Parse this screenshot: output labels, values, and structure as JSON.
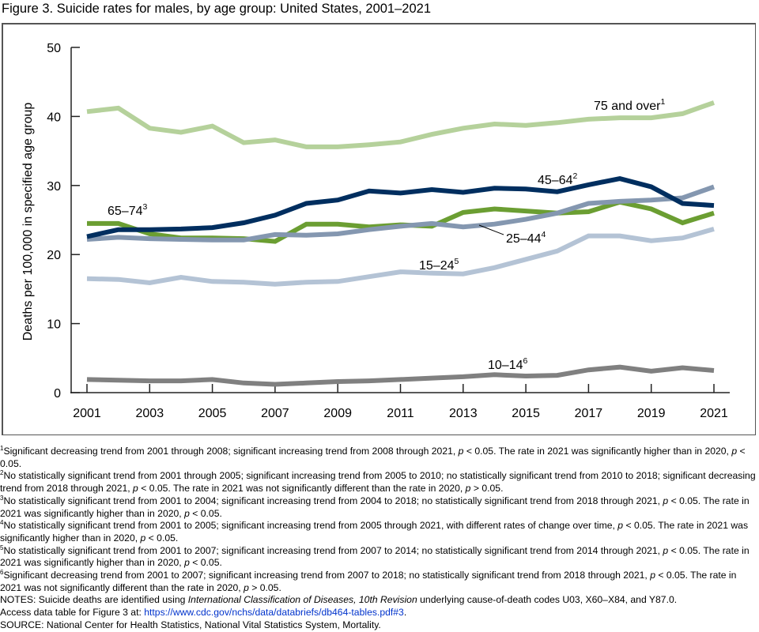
{
  "title": "Figure 3. Suicide rates for males, by age group: United States, 2001–2021",
  "chart_data": {
    "type": "line",
    "title": "Figure 3. Suicide rates for males, by age group: United States, 2001–2021",
    "xlabel": "",
    "ylabel": "Deaths per 100,000 in specified age group",
    "ylim": [
      0,
      50
    ],
    "xlim": [
      2001,
      2021
    ],
    "yticks": [
      0,
      10,
      20,
      30,
      40,
      50
    ],
    "xticks": [
      2001,
      2003,
      2005,
      2007,
      2009,
      2011,
      2013,
      2015,
      2017,
      2019,
      2021
    ],
    "grid": false,
    "legend": "inline labels",
    "x": [
      2001,
      2002,
      2003,
      2004,
      2005,
      2006,
      2007,
      2008,
      2009,
      2010,
      2011,
      2012,
      2013,
      2014,
      2015,
      2016,
      2017,
      2018,
      2019,
      2020,
      2021
    ],
    "series": [
      {
        "name": "75 and over",
        "label": "75 and over",
        "footnote": "1",
        "color": "#b5d19b",
        "values": [
          40.7,
          41.2,
          38.3,
          37.7,
          38.6,
          36.2,
          36.6,
          35.6,
          35.6,
          35.9,
          36.3,
          37.4,
          38.3,
          38.9,
          38.7,
          39.1,
          39.6,
          39.8,
          39.8,
          40.4,
          42.0
        ]
      },
      {
        "name": "45–64",
        "label": "45–64",
        "footnote": "2",
        "color": "#002e5f",
        "values": [
          22.6,
          23.6,
          23.6,
          23.7,
          23.9,
          24.6,
          25.7,
          27.4,
          27.9,
          29.2,
          28.9,
          29.4,
          29.0,
          29.6,
          29.5,
          29.1,
          30.1,
          31.0,
          29.8,
          27.4,
          27.1
        ]
      },
      {
        "name": "65–74",
        "label": "65–74",
        "footnote": "3",
        "color": "#6b9e32",
        "values": [
          24.5,
          24.5,
          23.0,
          22.4,
          22.4,
          22.3,
          21.9,
          24.4,
          24.4,
          24.0,
          24.3,
          24.1,
          26.1,
          26.6,
          26.3,
          26.0,
          26.2,
          27.6,
          26.6,
          24.6,
          26.0
        ]
      },
      {
        "name": "25–44",
        "label": "25–44",
        "footnote": "4",
        "color": "#8497b0",
        "values": [
          22.2,
          22.5,
          22.3,
          22.2,
          22.1,
          22.1,
          22.9,
          22.8,
          23.0,
          23.6,
          24.1,
          24.5,
          24.0,
          24.4,
          25.1,
          26.0,
          27.4,
          27.7,
          27.9,
          28.2,
          29.8
        ]
      },
      {
        "name": "15–24",
        "label": "15–24",
        "footnote": "5",
        "color": "#b4c3d5",
        "values": [
          16.5,
          16.4,
          15.9,
          16.7,
          16.1,
          16.0,
          15.7,
          16.0,
          16.1,
          16.8,
          17.5,
          17.3,
          17.2,
          18.1,
          19.3,
          20.5,
          22.7,
          22.7,
          22.0,
          22.4,
          23.7
        ]
      },
      {
        "name": "10–14",
        "label": "10–14",
        "footnote": "6",
        "color": "#808080",
        "values": [
          1.9,
          1.8,
          1.7,
          1.7,
          1.9,
          1.4,
          1.2,
          1.4,
          1.6,
          1.7,
          1.9,
          2.1,
          2.3,
          2.6,
          2.4,
          2.5,
          3.3,
          3.7,
          3.1,
          3.6,
          3.2
        ]
      }
    ]
  },
  "footnotes": [
    {
      "num": "1",
      "parts": [
        "Significant decreasing trend from 2001 through 2008; significant increasing trend from 2008 through 2021, ",
        "p",
        " < 0.05. The rate in 2021 was significantly higher than in 2020, ",
        "p",
        " < 0.05."
      ]
    },
    {
      "num": "2",
      "parts": [
        "No statistically significant trend from 2001 through 2005; significant increasing trend from 2005 to 2010; no statistically significant trend from 2010 to 2018; significant decreasing trend from 2018 through 2021, ",
        "p",
        " < 0.05. The rate in 2021 was not significantly different than the rate in 2020, ",
        "p",
        " > 0.05."
      ]
    },
    {
      "num": "3",
      "parts": [
        "No statistically significant trend from 2001 to 2004; significant increasing trend from 2004 to 2018; no statistically significant trend from 2018 through 2021, ",
        "p",
        " < 0.05. The rate in 2021 was significantly higher than in 2020, ",
        "p",
        " < 0.05."
      ]
    },
    {
      "num": "4",
      "parts": [
        "No statistically significant trend from 2001 to 2005; significant increasing trend from 2005 through 2021, with different rates of change over time, ",
        "p",
        " < 0.05. The rate in 2021 was significantly higher than in 2020, ",
        "p",
        " < 0.05."
      ]
    },
    {
      "num": "5",
      "parts": [
        "No statistically significant trend from 2001 to 2007; significant increasing trend from 2007 to 2014; no statistically significant trend from 2014 through 2021, ",
        "p",
        " < 0.05. The rate in 2021 was significantly higher than in 2020, ",
        "p",
        " < 0.05."
      ]
    },
    {
      "num": "6",
      "parts": [
        "Significant decreasing trend from 2001 to 2007; significant increasing trend from 2007 to 2018; no statistically significant trend from 2018 through 2021, ",
        "p",
        " < 0.05. The rate in 2021 was not significantly different than the rate in 2020, ",
        "p",
        " > 0.05."
      ]
    }
  ],
  "notes": {
    "prefix": "NOTES: Suicide deaths are identified using ",
    "italic": "International Classification of Diseases, 10th Revision",
    "suffix": " underlying cause-of-death codes U03, X60–X84, and Y87.0."
  },
  "access": {
    "prefix": "Access data table for Figure 3  at: ",
    "link_text": "https://www.cdc.gov/nchs/data/databriefs/db464-tables.pdf#3",
    "suffix": "."
  },
  "source": "SOURCE: National Center for Health Statistics, National Vital Statistics System, Mortality."
}
